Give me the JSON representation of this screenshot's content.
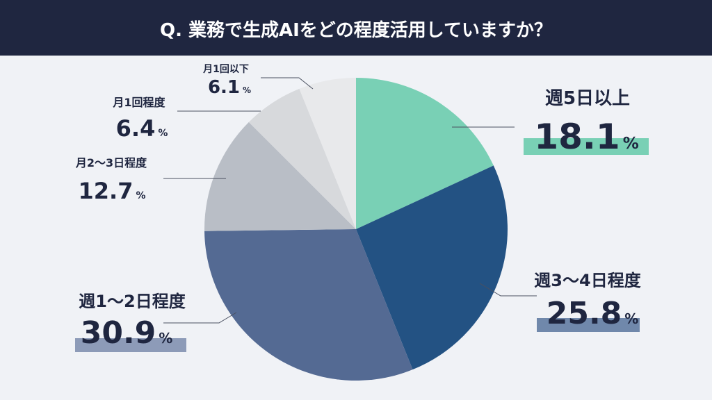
{
  "chart_data": {
    "type": "pie",
    "title": "Q. 業務で生成AIをどの程度活用していますか？",
    "categories": [
      "週5日以上",
      "週3〜4日程度",
      "週1〜2日程度",
      "月2〜3日程度",
      "月1回程度",
      "月1回以下"
    ],
    "values": [
      18.1,
      25.8,
      30.9,
      12.7,
      6.4,
      6.1
    ],
    "unit": "%",
    "colors": [
      "#79d0b5",
      "#235283",
      "#546a93",
      "#b9bec6",
      "#d7d9dc",
      "#e8e9eb"
    ]
  }
}
